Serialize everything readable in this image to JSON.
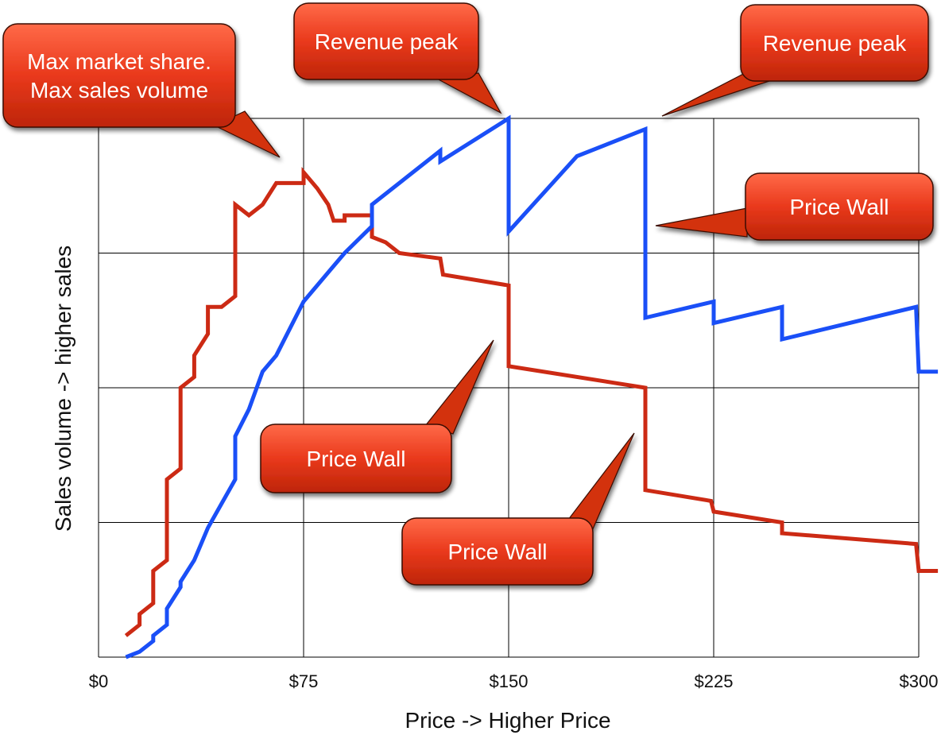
{
  "chart_data": {
    "type": "line",
    "xlabel": "Price -> Higher Price",
    "ylabel": "Sales volume -> higher sales",
    "x_ticks": [
      "$0",
      "$75",
      "$150",
      "$225",
      "$300"
    ],
    "xlim": [
      0,
      300
    ],
    "ylim": [
      0,
      100
    ],
    "y_ticks": [
      0,
      25,
      50,
      75,
      100
    ],
    "y_tick_labels_shown": false,
    "grid": true,
    "legend": "none",
    "series": [
      {
        "color": "#cc2a14",
        "points": [
          [
            10,
            4
          ],
          [
            10,
            4
          ],
          [
            15,
            6
          ],
          [
            15,
            8
          ],
          [
            20,
            10
          ],
          [
            20,
            16
          ],
          [
            25,
            18
          ],
          [
            25,
            20
          ],
          [
            25,
            33
          ],
          [
            30,
            35
          ],
          [
            30,
            50
          ],
          [
            35,
            52
          ],
          [
            35,
            56
          ],
          [
            40,
            60
          ],
          [
            40,
            65
          ],
          [
            45,
            65
          ],
          [
            50,
            67
          ],
          [
            50,
            84
          ],
          [
            55,
            82
          ],
          [
            60,
            84
          ],
          [
            65,
            88
          ],
          [
            75,
            88
          ],
          [
            75,
            90
          ],
          [
            80,
            87
          ],
          [
            84,
            84
          ],
          [
            86,
            81
          ],
          [
            90,
            81
          ],
          [
            90,
            82
          ],
          [
            100,
            82
          ],
          [
            100,
            78
          ],
          [
            105,
            77
          ],
          [
            110,
            75
          ],
          [
            125,
            74
          ],
          [
            126,
            71
          ],
          [
            150,
            69
          ],
          [
            150,
            54
          ],
          [
            200,
            50
          ],
          [
            200,
            31
          ],
          [
            224,
            29
          ],
          [
            225,
            27
          ],
          [
            250,
            25
          ],
          [
            250,
            23
          ],
          [
            299,
            21
          ],
          [
            300,
            16
          ],
          [
            307,
            16
          ]
        ]
      },
      {
        "color": "#1a4ff7",
        "points": [
          [
            10,
            0
          ],
          [
            10,
            0
          ],
          [
            15,
            1
          ],
          [
            20,
            3
          ],
          [
            20,
            4
          ],
          [
            25,
            6
          ],
          [
            25,
            9
          ],
          [
            30,
            13
          ],
          [
            30,
            14
          ],
          [
            35,
            18
          ],
          [
            40,
            24
          ],
          [
            50,
            33
          ],
          [
            50,
            41
          ],
          [
            55,
            46
          ],
          [
            60,
            53
          ],
          [
            65,
            56
          ],
          [
            75,
            66
          ],
          [
            85,
            72
          ],
          [
            90,
            75
          ],
          [
            100,
            80
          ],
          [
            100,
            84
          ],
          [
            125,
            94
          ],
          [
            125,
            92
          ],
          [
            150,
            100
          ],
          [
            150,
            79
          ],
          [
            175,
            93
          ],
          [
            200,
            98
          ],
          [
            200,
            63
          ],
          [
            225,
            66
          ],
          [
            225,
            62
          ],
          [
            250,
            65
          ],
          [
            250,
            59
          ],
          [
            299,
            65
          ],
          [
            300,
            53
          ],
          [
            307,
            53
          ]
        ]
      }
    ],
    "annotations": [
      {
        "text": [
          "Max market share.",
          "Max sales volume"
        ]
      },
      {
        "text": [
          "Revenue peak"
        ]
      },
      {
        "text": [
          "Revenue peak"
        ]
      },
      {
        "text": [
          "Price Wall"
        ]
      },
      {
        "text": [
          "Price Wall"
        ]
      },
      {
        "text": [
          "Price Wall"
        ]
      }
    ]
  }
}
